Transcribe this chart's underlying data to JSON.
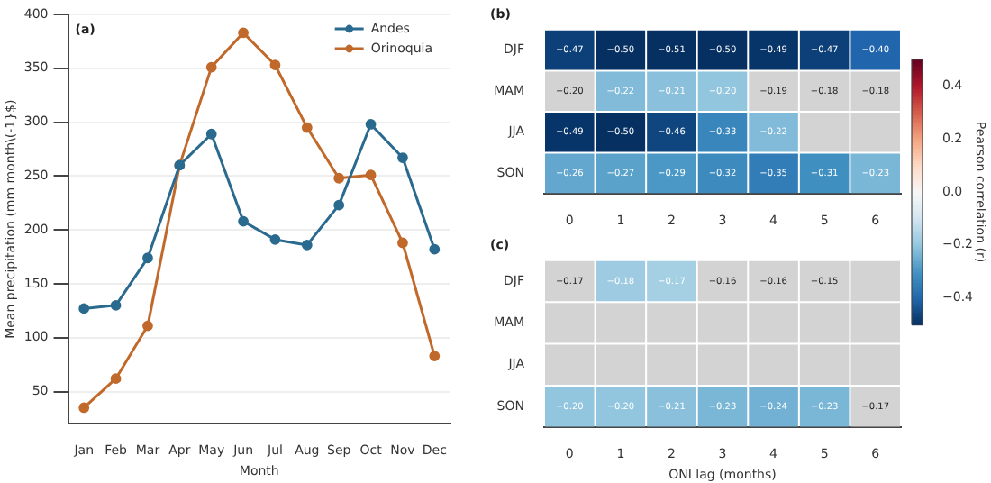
{
  "chart_data": [
    {
      "type": "line",
      "title": "(a)",
      "xlabel": "Month",
      "ylabel": "Mean precipitation (mm month\\(-1}$)",
      "categories": [
        "Jan",
        "Feb",
        "Mar",
        "Apr",
        "May",
        "Jun",
        "Jul",
        "Aug",
        "Sep",
        "Oct",
        "Nov",
        "Dec"
      ],
      "series": [
        {
          "name": "Andes",
          "color": "#2b6a8f",
          "values": [
            127,
            130,
            174,
            260,
            289,
            208,
            191,
            186,
            223,
            298,
            267,
            182
          ]
        },
        {
          "name": "Orinoquia",
          "color": "#c0692b",
          "values": [
            35,
            62,
            111,
            260,
            351,
            383,
            353,
            295,
            248,
            251,
            188,
            83
          ]
        }
      ],
      "ylim": [
        20,
        400
      ],
      "yticks": [
        50,
        100,
        150,
        200,
        250,
        300,
        350,
        400
      ],
      "grid": "y",
      "legend": "top right",
      "marker": "circle",
      "line_style": "solid"
    },
    {
      "type": "heatmap",
      "title": "(b)",
      "categories": [
        "0",
        "1",
        "2",
        "3",
        "4",
        "5",
        "6"
      ],
      "y_categories": [
        "DJF",
        "MAM",
        "JJA",
        "SON"
      ],
      "cells": [
        [
          -0.47,
          -0.5,
          -0.51,
          -0.5,
          -0.49,
          -0.47,
          -0.4
        ],
        [
          null,
          -0.22,
          -0.21,
          -0.2,
          null,
          null,
          null
        ],
        [
          -0.49,
          -0.5,
          -0.46,
          -0.33,
          -0.22,
          null,
          null
        ],
        [
          -0.26,
          -0.27,
          -0.29,
          -0.32,
          -0.35,
          -0.31,
          -0.23
        ]
      ],
      "cell_labels": [
        [
          "−0.47",
          "−0.50",
          "−0.51",
          "−0.50",
          "−0.49",
          "−0.47",
          "−0.40"
        ],
        [
          "−0.20",
          "−0.22",
          "−0.21",
          "−0.20",
          "−0.19",
          "−0.18",
          "−0.18"
        ],
        [
          "−0.49",
          "−0.50",
          "−0.46",
          "−0.33",
          "−0.22",
          null,
          null
        ],
        [
          "−0.26",
          "−0.27",
          "−0.29",
          "−0.32",
          "−0.35",
          "−0.31",
          "−0.23"
        ]
      ],
      "clim": [
        -0.5,
        0.5
      ],
      "cticks": [
        {
          "value": -0.4,
          "label": "−0.4"
        },
        {
          "value": -0.2,
          "label": "−0.2"
        },
        {
          "value": 0,
          "label": "0.0"
        },
        {
          "value": 0.2,
          "label": "0.2"
        },
        {
          "value": 0.4,
          "label": "0.4"
        }
      ],
      "clabel": "Pearson correlation (r)"
    },
    {
      "type": "heatmap",
      "title": "(c)",
      "xlabel": "ONI lag (months)",
      "categories": [
        "0",
        "1",
        "2",
        "3",
        "4",
        "5",
        "6"
      ],
      "y_categories": [
        "DJF",
        "MAM",
        "JJA",
        "SON"
      ],
      "cells": [
        [
          null,
          -0.18,
          -0.17,
          null,
          null,
          null,
          null
        ],
        [
          null,
          null,
          null,
          null,
          null,
          null,
          null
        ],
        [
          null,
          null,
          null,
          null,
          null,
          null,
          null
        ],
        [
          -0.2,
          -0.2,
          -0.21,
          -0.23,
          -0.24,
          -0.23,
          null
        ]
      ],
      "cell_labels": [
        [
          "−0.17",
          "−0.18",
          "−0.17",
          "−0.16",
          "−0.16",
          "−0.15",
          null
        ],
        [
          null,
          null,
          null,
          null,
          null,
          null,
          null
        ],
        [
          null,
          null,
          null,
          null,
          null,
          null,
          null
        ],
        [
          "−0.20",
          "−0.20",
          "−0.21",
          "−0.23",
          "−0.24",
          "−0.23",
          "−0.17"
        ]
      ]
    }
  ]
}
